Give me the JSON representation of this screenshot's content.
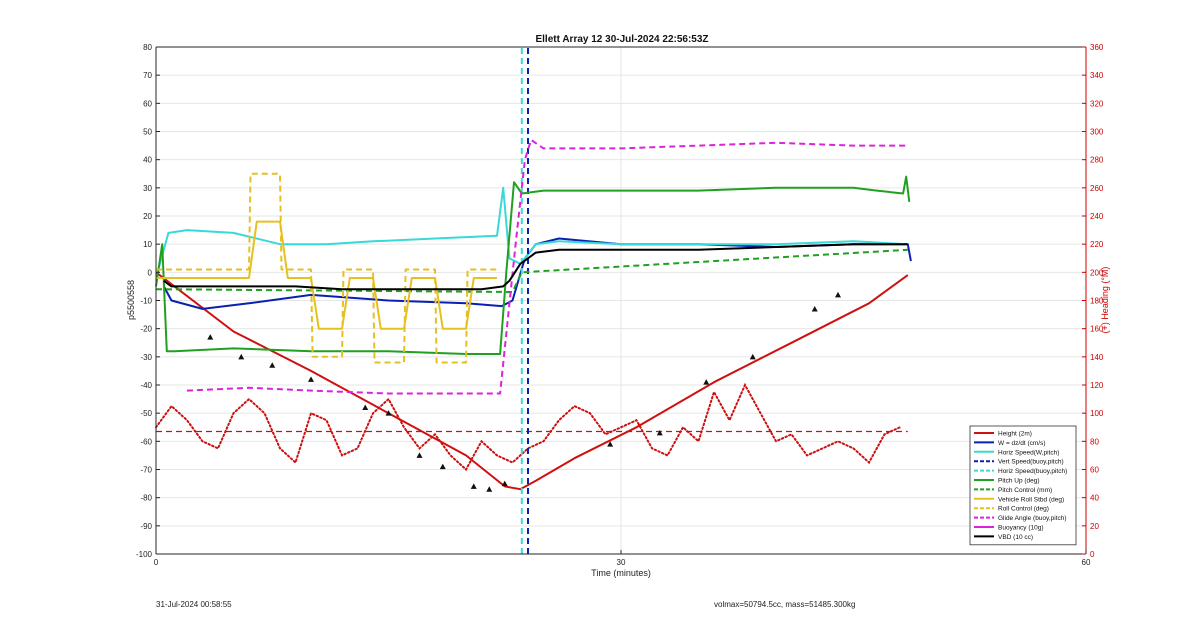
{
  "chart_data": {
    "type": "line",
    "title": "Ellett Array 12 30-Jul-2024 22:56:53Z",
    "xlabel": "Time (minutes)",
    "ylabel": "p5500558",
    "ylabel_right": "(+) Heading (°M)",
    "xlim": [
      0,
      60
    ],
    "ylim": [
      -100,
      80
    ],
    "ylim_right": [
      0,
      360
    ],
    "xticks": [
      0,
      30,
      60
    ],
    "yticks": [
      -100,
      -90,
      -80,
      -70,
      -60,
      -50,
      -40,
      -30,
      -20,
      -10,
      0,
      10,
      20,
      30,
      40,
      50,
      60,
      70,
      80
    ],
    "yticks_right": [
      0,
      20,
      40,
      60,
      80,
      100,
      120,
      140,
      160,
      180,
      200,
      220,
      240,
      260,
      280,
      300,
      320,
      340,
      360
    ],
    "grid": true,
    "legend_position": "bottom-right",
    "colors": {
      "right_axis": "#cc0000",
      "axes": "#262626",
      "grid": "#e6e6e6"
    },
    "series": [
      {
        "name": "Height (2m)",
        "color": "#d01010",
        "style": "solid",
        "x": [
          0,
          5,
          10,
          15,
          20,
          22.5,
          23.5,
          24.5,
          27,
          31,
          36,
          41,
          46,
          48.5
        ],
        "y": [
          0,
          -21,
          -35,
          -50,
          -65,
          -76,
          -77,
          -74,
          -66,
          -55,
          -39,
          -25,
          -11,
          -1
        ]
      },
      {
        "name": "W = dz/dt (cm/s)",
        "color": "#0a20b0",
        "style": "solid",
        "x": [
          0.5,
          1,
          3,
          6,
          10,
          15,
          20,
          22.3,
          23,
          23.8,
          24.5,
          26,
          30,
          35,
          40,
          45,
          48.5,
          48.7
        ],
        "y": [
          -5,
          -10,
          -13,
          -11,
          -8,
          -10,
          -11,
          -12,
          -10,
          5,
          10,
          12,
          10,
          10,
          9,
          10,
          10,
          4
        ]
      },
      {
        "name": "Horiz Speed(W,pitch)",
        "color": "#3ad8d8",
        "style": "solid",
        "x": [
          0.2,
          0.8,
          2,
          5,
          8,
          11,
          14,
          18,
          22,
          22.4,
          22.8,
          23.5,
          24.5,
          26,
          30,
          35,
          40,
          45,
          48.5
        ],
        "y": [
          2,
          14,
          15,
          14,
          10,
          10,
          11,
          12,
          13,
          30,
          5,
          3,
          10,
          11,
          10,
          10,
          10,
          11,
          10
        ]
      },
      {
        "name": "Vert Speed(buoy,pitch)",
        "color": "#0a20b0",
        "style": "dashed",
        "x": [
          24.0,
          24.0
        ],
        "y": [
          -100,
          80
        ]
      },
      {
        "name": "Horiz Speed(buoy,pitch)",
        "color": "#3ad8d8",
        "style": "dashed",
        "x": [
          23.6,
          23.6
        ],
        "y": [
          -100,
          80
        ]
      },
      {
        "name": "Pitch Up (deg)",
        "color": "#20a020",
        "style": "solid",
        "x": [
          0,
          0.4,
          0.7,
          1.2,
          5,
          10,
          15,
          20,
          22.2,
          22.6,
          23.1,
          23.6,
          25,
          30,
          35,
          40,
          45,
          46.5,
          48.2,
          48.4,
          48.6
        ],
        "y": [
          -5,
          10,
          -28,
          -28,
          -27,
          -28,
          -28,
          -29,
          -29,
          0,
          32,
          28,
          29,
          29,
          29,
          30,
          30,
          29,
          28,
          34,
          25
        ]
      },
      {
        "name": "Pitch Control (mm)",
        "color": "#20a020",
        "style": "dashed",
        "x": [
          0,
          23,
          23.6,
          48.5
        ],
        "y": [
          -6,
          -7,
          0,
          8
        ]
      },
      {
        "name": "Vehicle Roll Stbd (deg)",
        "color": "#e6c020",
        "style": "solid",
        "x": [
          0,
          2,
          4,
          6,
          6.5,
          8,
          8.5,
          10,
          10.5,
          12,
          12.5,
          14,
          14.5,
          16,
          16.5,
          18,
          18.5,
          20,
          20.5,
          22
        ],
        "y": [
          -2,
          -2,
          -2,
          -2,
          18,
          18,
          -2,
          -2,
          -20,
          -20,
          -2,
          -2,
          -20,
          -20,
          -2,
          -2,
          -20,
          -20,
          -2,
          -2
        ]
      },
      {
        "name": "Roll Control (deg)",
        "color": "#e6c020",
        "style": "dashed",
        "x": [
          0,
          2,
          6,
          6.1,
          8,
          8.1,
          10,
          10.1,
          12,
          12.1,
          14,
          14.1,
          16,
          16.1,
          18,
          18.1,
          20,
          20.1,
          22
        ],
        "y": [
          1,
          1,
          1,
          35,
          35,
          1,
          1,
          -30,
          -30,
          1,
          1,
          -32,
          -32,
          1,
          1,
          -32,
          -32,
          1,
          1
        ]
      },
      {
        "name": "Glide Angle (buoy,pitch)",
        "color": "#dd22dd",
        "style": "dashed",
        "x": [
          2,
          6,
          10,
          15,
          20,
          22.2,
          23.2,
          23.8,
          24.2,
          25,
          30,
          35,
          40,
          45,
          48.5
        ],
        "y": [
          -42,
          -41,
          -42,
          -43,
          -43,
          -43,
          10,
          40,
          47,
          44,
          44,
          45,
          46,
          45,
          45
        ]
      },
      {
        "name": "Buoyancy (10g)",
        "color": "#dd22dd",
        "style": "solid",
        "x": [],
        "y": []
      },
      {
        "name": "VBD (10 cc)",
        "color": "#000000",
        "style": "solid",
        "x": [
          0.5,
          1.0,
          3,
          5,
          9,
          12,
          15,
          18,
          21,
          22.4,
          22.8,
          23.5,
          24.5,
          26,
          30,
          35,
          40,
          45,
          48.5
        ],
        "y": [
          -3,
          -5,
          -5,
          -5,
          -5,
          -6,
          -6,
          -6,
          -6,
          -5,
          -3,
          3,
          7,
          8,
          8,
          8,
          9,
          10,
          10
        ]
      }
    ],
    "heading_series": {
      "axis": "right",
      "color": "#cc1010",
      "style": "dotted",
      "x": [
        0,
        1,
        2,
        3,
        4,
        5,
        6,
        7,
        8,
        9,
        10,
        11,
        12,
        13,
        14,
        15,
        16,
        17,
        18,
        19,
        20,
        21,
        22,
        23,
        24,
        25,
        26,
        27,
        28,
        29,
        30,
        31,
        32,
        33,
        34,
        35,
        36,
        37,
        38,
        39,
        40,
        41,
        42,
        43,
        44,
        45,
        46,
        47,
        48
      ],
      "y": [
        90,
        105,
        95,
        80,
        75,
        100,
        110,
        100,
        75,
        65,
        100,
        95,
        70,
        75,
        100,
        110,
        90,
        75,
        85,
        70,
        60,
        80,
        70,
        65,
        75,
        80,
        95,
        105,
        100,
        85,
        90,
        95,
        75,
        70,
        90,
        80,
        115,
        95,
        120,
        100,
        80,
        85,
        70,
        75,
        80,
        75,
        65,
        85,
        90
      ]
    },
    "reference_heading": {
      "value": 87,
      "color": "#cc1010",
      "style": "dashed"
    },
    "markers": {
      "x": [
        3.5,
        5.5,
        7.5,
        10,
        13.5,
        15,
        17,
        18.5,
        20.5,
        21.5,
        22.5,
        29.3,
        32.5,
        35.5,
        38.5,
        42.5,
        44
      ],
      "y": [
        -23,
        -30,
        -33,
        -38,
        -48,
        -50,
        -65,
        -69,
        -76,
        -77,
        -75,
        -61,
        -57,
        -39,
        -30,
        -13,
        -8
      ]
    }
  },
  "footer": {
    "date": "31-Jul-2024 00:58:55",
    "stats": "volmax=50794.5cc, mass=51485.300kg"
  }
}
